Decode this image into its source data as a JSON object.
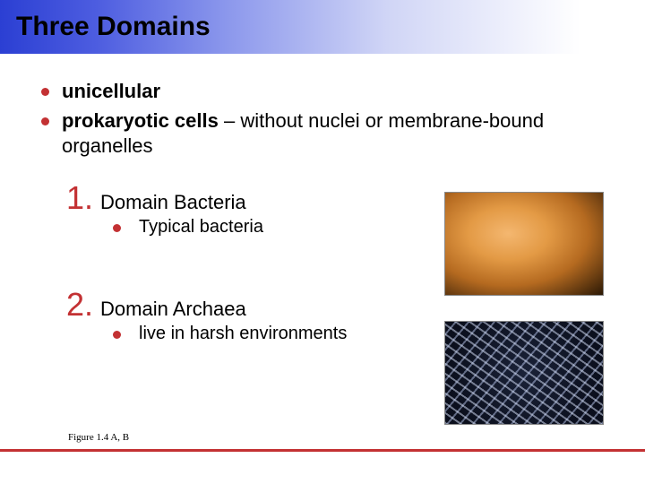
{
  "title": "Three Domains",
  "colors": {
    "accent": "#c33133",
    "gradient_start": "#2b3fd3",
    "gradient_end": "#ffffff",
    "text": "#000000",
    "background": "#ffffff"
  },
  "typography": {
    "title_fontsize": 30,
    "bullet_fontsize": 22,
    "number_fontsize": 36,
    "sub_fontsize": 20,
    "figure_fontsize": 11
  },
  "bullets": [
    {
      "bold": "unicellular",
      "rest": ""
    },
    {
      "bold": "prokaryotic cells",
      "rest": " – without nuclei or membrane-bound organelles"
    }
  ],
  "domains": [
    {
      "number": "1.",
      "label": "Domain Bacteria",
      "sub": "Typical bacteria"
    },
    {
      "number": "2.",
      "label": "Domain Archaea",
      "sub": "live in harsh environments"
    }
  ],
  "figure_ref": "Figure 1.4 A, B"
}
